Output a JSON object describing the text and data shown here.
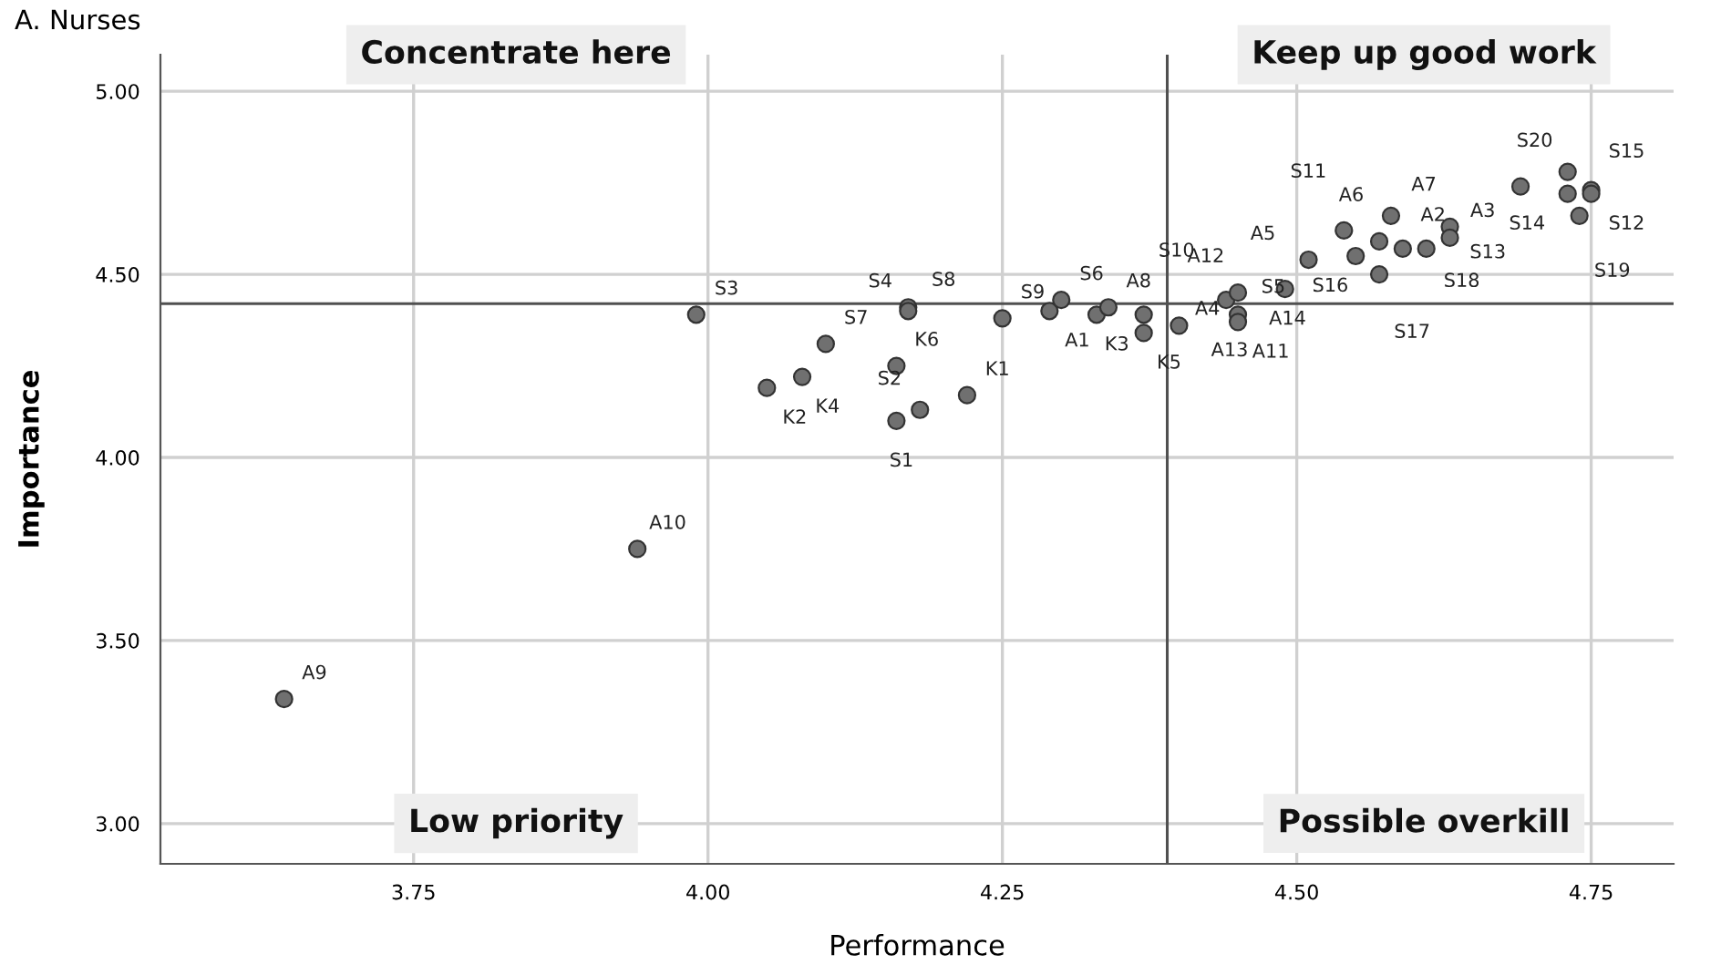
{
  "chart_data": {
    "type": "scatter",
    "title": "A. Nurses",
    "xlabel": "Performance",
    "ylabel": "Importance",
    "x": [
      3.64,
      3.94,
      3.99,
      4.05,
      4.08,
      4.1,
      4.17,
      4.17,
      4.16,
      4.16,
      4.18,
      4.22,
      4.25,
      4.29,
      4.3,
      4.33,
      4.34,
      4.37,
      4.37,
      4.4,
      4.44,
      4.45,
      4.45,
      4.45,
      4.49,
      4.51,
      4.55,
      4.54,
      4.57,
      4.58,
      4.57,
      4.59,
      4.61,
      4.63,
      4.63,
      4.69,
      4.73,
      4.73,
      4.75,
      4.75,
      4.74
    ],
    "values": [
      3.34,
      3.75,
      4.39,
      4.19,
      4.22,
      4.31,
      4.41,
      4.4,
      4.25,
      4.1,
      4.13,
      4.17,
      4.38,
      4.4,
      4.43,
      4.39,
      4.41,
      4.39,
      4.34,
      4.36,
      4.43,
      4.45,
      4.39,
      4.37,
      4.46,
      4.54,
      4.55,
      4.62,
      4.59,
      4.66,
      4.5,
      4.57,
      4.57,
      4.63,
      4.6,
      4.74,
      4.78,
      4.72,
      4.73,
      4.72,
      4.66
    ],
    "value_labels": [
      "A9",
      "A10",
      "S3",
      "K2",
      "K4",
      "S7",
      "S4",
      "S8",
      "K6",
      "S1",
      "S2",
      "K1",
      "S9",
      "A1",
      "S6",
      "K3",
      "A8",
      "S10",
      "K5",
      "A13",
      "A12",
      "S5",
      "A4",
      "A11",
      "A14",
      "A5",
      "S16",
      "S11",
      "A6",
      "A7",
      "S17",
      "A2",
      "S18",
      "A3",
      "S13",
      null,
      "S20",
      "S14",
      "S15",
      "S12",
      "S19"
    ],
    "color": "#707070",
    "marker": "circle",
    "xlim": [
      3.535,
      4.82
    ],
    "ylim": [
      2.89,
      5.1
    ],
    "xticks": [
      {
        "value": 3.75,
        "label": "3.75"
      },
      {
        "value": 4.0,
        "label": "4.00"
      },
      {
        "value": 4.25,
        "label": "4.25"
      },
      {
        "value": 4.5,
        "label": "4.50"
      },
      {
        "value": 4.75,
        "label": "4.75"
      }
    ],
    "yticks": [
      {
        "value": 3.0,
        "label": "3.00"
      },
      {
        "value": 3.5,
        "label": "3.50"
      },
      {
        "value": 4.0,
        "label": "4.00"
      },
      {
        "value": 4.5,
        "label": "4.50"
      },
      {
        "value": 5.0,
        "label": "5.00"
      }
    ],
    "grid": true,
    "ref_lines": [
      {
        "axis": "x",
        "value": 4.39,
        "color": "#505050"
      },
      {
        "axis": "y",
        "value": 4.42,
        "color": "#505050"
      }
    ],
    "annotations": [
      "Concentrate here",
      "Keep up good work",
      "Low priority",
      "Possible overkill"
    ]
  }
}
